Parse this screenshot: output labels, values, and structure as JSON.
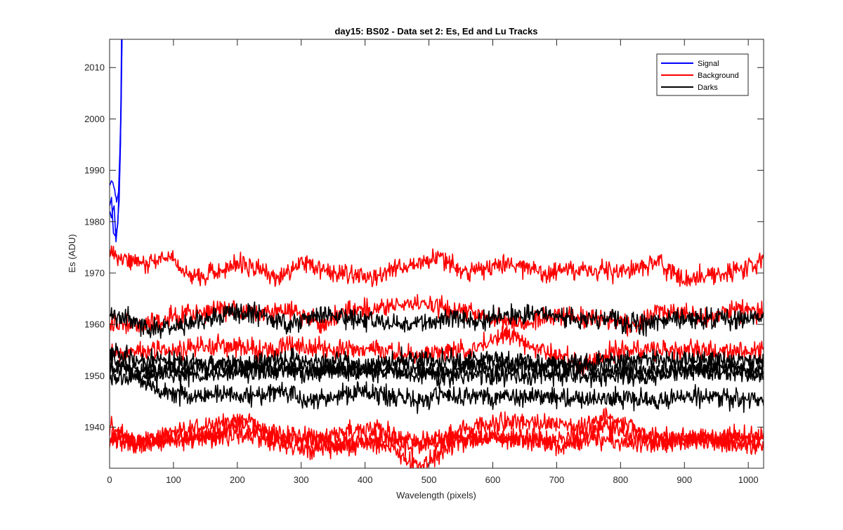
{
  "chart_data": {
    "type": "line",
    "title": "day15: BS02 - Data set 2: Es, Ed and Lu Tracks",
    "xlabel": "Wavelength (pixels)",
    "ylabel": "Es (ADU)",
    "xlim": [
      0,
      1024
    ],
    "ylim": [
      1932,
      2015.5
    ],
    "xticks": [
      0,
      100,
      200,
      300,
      400,
      500,
      600,
      700,
      800,
      900,
      1000
    ],
    "xtick_labels": [
      "0",
      "100",
      "200",
      "300",
      "400",
      "500",
      "600",
      "700",
      "800",
      "900",
      "1000"
    ],
    "yticks": [
      1940,
      1950,
      1960,
      1970,
      1980,
      1990,
      2000,
      2010
    ],
    "ytick_labels": [
      "1940",
      "1950",
      "1960",
      "1970",
      "1980",
      "1990",
      "2000",
      "2010"
    ],
    "grid": false,
    "legend_position": "top-right",
    "legend": [
      {
        "label": "Signal",
        "color": "#0000ff"
      },
      {
        "label": "Background",
        "color": "#ff0000"
      },
      {
        "label": "Darks",
        "color": "#000000"
      }
    ],
    "series": [
      {
        "name": "Signal",
        "color": "#0000ff",
        "anchors": [
          [
            0,
            1983
          ],
          [
            3,
            1985
          ],
          [
            6,
            1978
          ],
          [
            9,
            1977
          ],
          [
            12,
            1979
          ],
          [
            15,
            1984
          ],
          [
            17,
            1995
          ],
          [
            19,
            2020
          ]
        ]
      },
      {
        "name": "Signal",
        "color": "#0000ff",
        "anchors": [
          [
            0,
            1987
          ],
          [
            4,
            1988
          ],
          [
            8,
            1986
          ],
          [
            11,
            1984
          ],
          [
            14,
            1986
          ],
          [
            16,
            1993
          ],
          [
            18,
            2004
          ],
          [
            20,
            2022
          ]
        ]
      },
      {
        "name": "Signal",
        "color": "#0000ff",
        "anchors": [
          [
            0,
            1982
          ],
          [
            3,
            1981
          ],
          [
            7,
            1983
          ],
          [
            10,
            1976
          ],
          [
            13,
            1980
          ],
          [
            16,
            1990
          ],
          [
            18,
            2002
          ],
          [
            20,
            2021
          ]
        ]
      },
      {
        "name": "Background",
        "color": "#ff0000",
        "anchors": [
          [
            0,
            1974
          ],
          [
            40,
            1972
          ],
          [
            90,
            1973
          ],
          [
            130,
            1969
          ],
          [
            210,
            1972
          ],
          [
            260,
            1969
          ],
          [
            300,
            1972
          ],
          [
            350,
            1970
          ],
          [
            400,
            1969
          ],
          [
            460,
            1971
          ],
          [
            520,
            1973
          ],
          [
            560,
            1970
          ],
          [
            620,
            1972
          ],
          [
            680,
            1970
          ],
          [
            740,
            1971
          ],
          [
            800,
            1970
          ],
          [
            860,
            1972
          ],
          [
            900,
            1969
          ],
          [
            960,
            1970
          ],
          [
            1024,
            1972
          ]
        ]
      },
      {
        "name": "Background",
        "color": "#ff0000",
        "anchors": [
          [
            0,
            1960
          ],
          [
            60,
            1960
          ],
          [
            120,
            1962
          ],
          [
            170,
            1963
          ],
          [
            230,
            1962
          ],
          [
            280,
            1963
          ],
          [
            330,
            1960
          ],
          [
            380,
            1963
          ],
          [
            420,
            1963
          ],
          [
            480,
            1964
          ],
          [
            530,
            1963
          ],
          [
            580,
            1962
          ],
          [
            640,
            1960
          ],
          [
            700,
            1962
          ],
          [
            760,
            1961
          ],
          [
            820,
            1960
          ],
          [
            870,
            1963
          ],
          [
            930,
            1961
          ],
          [
            980,
            1963
          ],
          [
            1024,
            1962
          ]
        ]
      },
      {
        "name": "Background",
        "color": "#ff0000",
        "anchors": [
          [
            0,
            1954
          ],
          [
            50,
            1955
          ],
          [
            110,
            1955
          ],
          [
            170,
            1956
          ],
          [
            230,
            1955
          ],
          [
            300,
            1956
          ],
          [
            360,
            1955
          ],
          [
            420,
            1955
          ],
          [
            480,
            1954
          ],
          [
            560,
            1955
          ],
          [
            620,
            1958
          ],
          [
            680,
            1955
          ],
          [
            740,
            1952
          ],
          [
            800,
            1955
          ],
          [
            860,
            1955
          ],
          [
            920,
            1955
          ],
          [
            980,
            1955
          ],
          [
            1024,
            1955
          ]
        ]
      },
      {
        "name": "Background",
        "color": "#ff0000",
        "anchors": [
          [
            0,
            1938
          ],
          [
            60,
            1937
          ],
          [
            110,
            1938
          ],
          [
            170,
            1938
          ],
          [
            214,
            1942
          ],
          [
            250,
            1939
          ],
          [
            300,
            1938
          ],
          [
            350,
            1937
          ],
          [
            400,
            1937
          ],
          [
            440,
            1938
          ],
          [
            490,
            1937
          ],
          [
            540,
            1938
          ],
          [
            600,
            1938
          ],
          [
            660,
            1937
          ],
          [
            720,
            1938
          ],
          [
            780,
            1940
          ],
          [
            830,
            1938
          ],
          [
            880,
            1937
          ],
          [
            940,
            1938
          ],
          [
            1024,
            1938
          ]
        ]
      },
      {
        "name": "Background",
        "color": "#ff0000",
        "anchors": [
          [
            0,
            1940
          ],
          [
            40,
            1937
          ],
          [
            100,
            1939
          ],
          [
            150,
            1940
          ],
          [
            200,
            1941
          ],
          [
            260,
            1938
          ],
          [
            320,
            1938
          ],
          [
            370,
            1939
          ],
          [
            420,
            1940
          ],
          [
            470,
            1936
          ],
          [
            520,
            1938
          ],
          [
            570,
            1940
          ],
          [
            620,
            1941
          ],
          [
            680,
            1941
          ],
          [
            740,
            1940
          ],
          [
            780,
            1942
          ],
          [
            830,
            1939
          ],
          [
            880,
            1938
          ],
          [
            940,
            1938
          ],
          [
            1024,
            1938
          ]
        ]
      },
      {
        "name": "Background",
        "color": "#ff0000",
        "anchors": [
          [
            0,
            1938
          ],
          [
            50,
            1937
          ],
          [
            110,
            1937
          ],
          [
            170,
            1939
          ],
          [
            230,
            1938
          ],
          [
            290,
            1936
          ],
          [
            340,
            1936
          ],
          [
            390,
            1937
          ],
          [
            440,
            1936
          ],
          [
            484,
            1932
          ],
          [
            540,
            1937
          ],
          [
            600,
            1938
          ],
          [
            660,
            1938
          ],
          [
            710,
            1936
          ],
          [
            760,
            1938
          ],
          [
            820,
            1937
          ],
          [
            870,
            1937
          ],
          [
            920,
            1938
          ],
          [
            980,
            1936
          ],
          [
            1024,
            1937
          ]
        ]
      },
      {
        "name": "Darks",
        "color": "#000000",
        "anchors": [
          [
            0,
            1962
          ],
          [
            30,
            1961
          ],
          [
            70,
            1959
          ],
          [
            120,
            1960
          ],
          [
            180,
            1962
          ],
          [
            230,
            1962
          ],
          [
            280,
            1960
          ],
          [
            330,
            1962
          ],
          [
            380,
            1961
          ],
          [
            430,
            1960
          ],
          [
            480,
            1960
          ],
          [
            530,
            1961
          ],
          [
            580,
            1961
          ],
          [
            630,
            1962
          ],
          [
            680,
            1962
          ],
          [
            730,
            1961
          ],
          [
            780,
            1961
          ],
          [
            830,
            1960
          ],
          [
            880,
            1961
          ],
          [
            930,
            1961
          ],
          [
            980,
            1961
          ],
          [
            1024,
            1961
          ]
        ]
      },
      {
        "name": "Darks",
        "color": "#000000",
        "anchors": [
          [
            0,
            1955
          ],
          [
            40,
            1953
          ],
          [
            100,
            1953
          ],
          [
            160,
            1952
          ],
          [
            220,
            1952
          ],
          [
            280,
            1953
          ],
          [
            340,
            1953
          ],
          [
            400,
            1952
          ],
          [
            460,
            1953
          ],
          [
            520,
            1953
          ],
          [
            580,
            1953
          ],
          [
            640,
            1953
          ],
          [
            700,
            1952
          ],
          [
            760,
            1953
          ],
          [
            820,
            1953
          ],
          [
            880,
            1953
          ],
          [
            940,
            1953
          ],
          [
            1024,
            1953
          ]
        ]
      },
      {
        "name": "Darks",
        "color": "#000000",
        "anchors": [
          [
            0,
            1952
          ],
          [
            50,
            1951
          ],
          [
            110,
            1951
          ],
          [
            170,
            1952
          ],
          [
            230,
            1952
          ],
          [
            290,
            1951
          ],
          [
            350,
            1951
          ],
          [
            410,
            1951
          ],
          [
            470,
            1951
          ],
          [
            530,
            1951
          ],
          [
            590,
            1952
          ],
          [
            650,
            1952
          ],
          [
            710,
            1952
          ],
          [
            770,
            1951
          ],
          [
            830,
            1951
          ],
          [
            890,
            1951
          ],
          [
            950,
            1952
          ],
          [
            1024,
            1951
          ]
        ]
      },
      {
        "name": "Darks",
        "color": "#000000",
        "anchors": [
          [
            0,
            1950
          ],
          [
            60,
            1950
          ],
          [
            120,
            1950
          ],
          [
            180,
            1950
          ],
          [
            240,
            1951
          ],
          [
            300,
            1951
          ],
          [
            360,
            1951
          ],
          [
            420,
            1951
          ],
          [
            480,
            1950
          ],
          [
            540,
            1950
          ],
          [
            600,
            1950
          ],
          [
            660,
            1950
          ],
          [
            720,
            1950
          ],
          [
            780,
            1950
          ],
          [
            840,
            1950
          ],
          [
            900,
            1951
          ],
          [
            960,
            1951
          ],
          [
            1024,
            1950
          ]
        ]
      },
      {
        "name": "Darks",
        "color": "#000000",
        "anchors": [
          [
            0,
            1954
          ],
          [
            40,
            1950
          ],
          [
            80,
            1947
          ],
          [
            120,
            1946
          ],
          [
            170,
            1946
          ],
          [
            220,
            1946
          ],
          [
            270,
            1947
          ],
          [
            310,
            1945
          ],
          [
            350,
            1946
          ],
          [
            400,
            1947
          ],
          [
            440,
            1946
          ],
          [
            480,
            1945
          ],
          [
            520,
            1946
          ],
          [
            560,
            1946
          ],
          [
            600,
            1946
          ],
          [
            650,
            1946
          ],
          [
            700,
            1946
          ],
          [
            750,
            1945
          ],
          [
            800,
            1946
          ],
          [
            850,
            1945
          ],
          [
            900,
            1946
          ],
          [
            950,
            1946
          ],
          [
            1000,
            1945
          ],
          [
            1024,
            1945
          ]
        ]
      }
    ]
  }
}
